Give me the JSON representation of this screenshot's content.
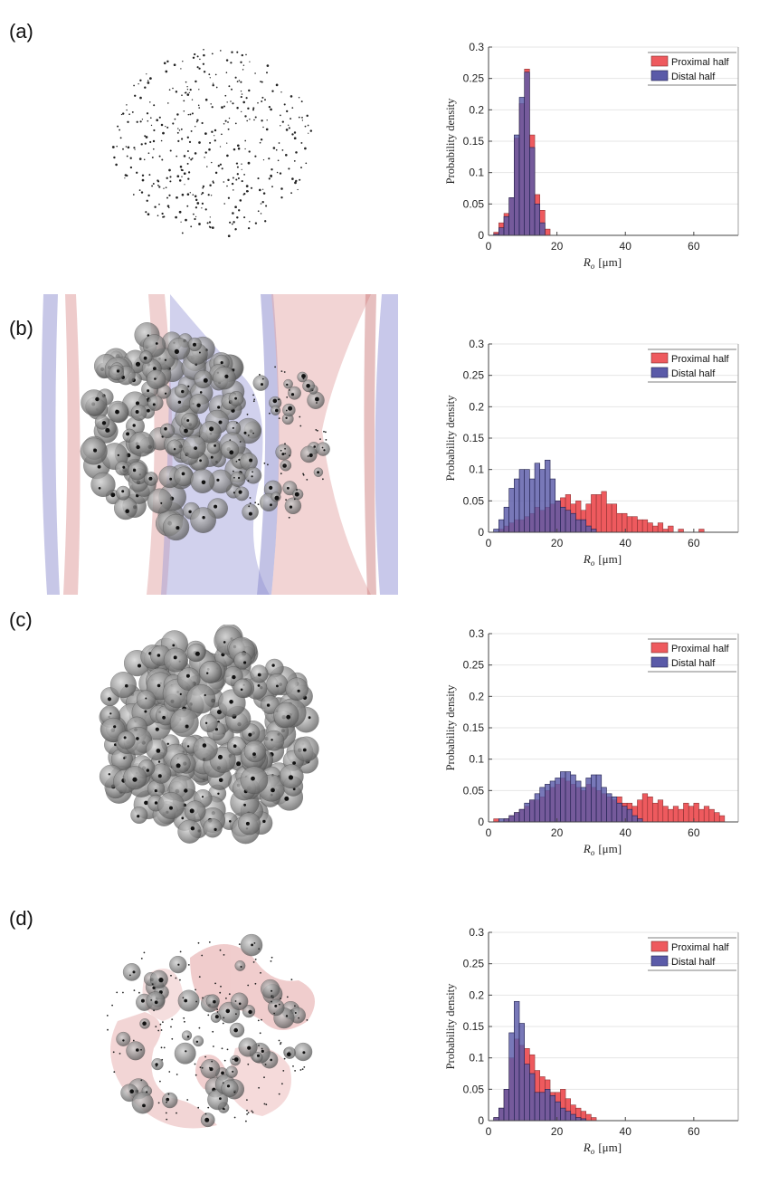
{
  "panels": [
    {
      "label": "(a)",
      "render": "sparse-points"
    },
    {
      "label": "(b)",
      "render": "clusters-with-vessels"
    },
    {
      "label": "(c)",
      "render": "dense-clusters"
    },
    {
      "label": "(d)",
      "render": "clusters-with-pink-surface"
    }
  ],
  "colors": {
    "proximal": "#ee5a5e",
    "distal": "#5a5aa8",
    "overlap": "#4a3d7a",
    "grid": "#e6e6e6",
    "axis": "#444444"
  },
  "chart_data": [
    {
      "type": "bar",
      "title": "",
      "xlabel_var": "R",
      "xlabel_sub": "o",
      "xlabel_unit": "[μm]",
      "ylabel": "Probability density",
      "xlim": [
        0,
        73
      ],
      "ylim": [
        0,
        0.3
      ],
      "xticks": [
        "0",
        "20",
        "40",
        "60"
      ],
      "yticks": [
        "0",
        "0.05",
        "0.1",
        "0.15",
        "0.2",
        "0.25",
        "0.3"
      ],
      "bin_width": 1.5,
      "legend": {
        "position": "top-right",
        "entries": [
          "Proximal half",
          "Distal half"
        ]
      },
      "series": [
        {
          "name": "Proximal half",
          "bin_starts": [
            1.5,
            3,
            4.5,
            6,
            7.5,
            9,
            10.5,
            12,
            13.5,
            15,
            16.5
          ],
          "values": [
            0.005,
            0.02,
            0.035,
            0.06,
            0.155,
            0.21,
            0.265,
            0.16,
            0.065,
            0.04,
            0.01
          ]
        },
        {
          "name": "Distal half",
          "bin_starts": [
            1.5,
            3,
            4.5,
            6,
            7.5,
            9,
            10.5,
            12,
            13.5,
            15
          ],
          "values": [
            0.002,
            0.012,
            0.03,
            0.06,
            0.16,
            0.22,
            0.26,
            0.14,
            0.05,
            0.02
          ]
        }
      ]
    },
    {
      "type": "bar",
      "title": "",
      "xlabel_var": "R",
      "xlabel_sub": "o",
      "xlabel_unit": "[μm]",
      "ylabel": "Probability density",
      "xlim": [
        0,
        73
      ],
      "ylim": [
        0,
        0.3
      ],
      "xticks": [
        "0",
        "20",
        "40",
        "60"
      ],
      "yticks": [
        "0",
        "0.05",
        "0.1",
        "0.15",
        "0.2",
        "0.25",
        "0.3"
      ],
      "bin_width": 1.5,
      "legend": {
        "position": "top-right",
        "entries": [
          "Proximal half",
          "Distal half"
        ]
      },
      "series": [
        {
          "name": "Proximal half",
          "bin_starts": [
            3,
            4.5,
            6,
            7.5,
            9,
            10.5,
            12,
            13.5,
            15,
            16.5,
            18,
            19.5,
            21,
            22.5,
            24,
            25.5,
            27,
            28.5,
            30,
            31.5,
            33,
            34.5,
            36,
            37.5,
            39,
            40.5,
            42,
            43.5,
            45,
            46.5,
            48,
            49.5,
            51,
            52.5,
            55.5,
            61.5
          ],
          "values": [
            0.005,
            0.01,
            0.015,
            0.02,
            0.02,
            0.025,
            0.03,
            0.04,
            0.035,
            0.04,
            0.045,
            0.05,
            0.055,
            0.06,
            0.045,
            0.05,
            0.035,
            0.045,
            0.06,
            0.06,
            0.065,
            0.045,
            0.045,
            0.03,
            0.03,
            0.025,
            0.025,
            0.02,
            0.02,
            0.015,
            0.01,
            0.015,
            0.005,
            0.01,
            0.005,
            0.005
          ]
        },
        {
          "name": "Distal half",
          "bin_starts": [
            1.5,
            3,
            4.5,
            6,
            7.5,
            9,
            10.5,
            12,
            13.5,
            15,
            16.5,
            18,
            19.5,
            21,
            22.5,
            24,
            25.5,
            27,
            28.5,
            30
          ],
          "values": [
            0.005,
            0.02,
            0.04,
            0.07,
            0.085,
            0.1,
            0.1,
            0.085,
            0.11,
            0.1,
            0.115,
            0.085,
            0.05,
            0.04,
            0.035,
            0.03,
            0.02,
            0.02,
            0.01,
            0.005
          ]
        }
      ]
    },
    {
      "type": "bar",
      "title": "",
      "xlabel_var": "R",
      "xlabel_sub": "o",
      "xlabel_unit": "[μm]",
      "ylabel": "Probability density",
      "xlim": [
        0,
        73
      ],
      "ylim": [
        0,
        0.3
      ],
      "xticks": [
        "0",
        "20",
        "40",
        "60"
      ],
      "yticks": [
        "0",
        "0.05",
        "0.1",
        "0.15",
        "0.2",
        "0.25",
        "0.3"
      ],
      "bin_width": 1.5,
      "legend": {
        "position": "top-right",
        "entries": [
          "Proximal half",
          "Distal half"
        ]
      },
      "series": [
        {
          "name": "Proximal half",
          "bin_starts": [
            1.5,
            4.5,
            6,
            7.5,
            9,
            10.5,
            12,
            13.5,
            15,
            16.5,
            18,
            19.5,
            21,
            22.5,
            24,
            25.5,
            27,
            28.5,
            30,
            31.5,
            33,
            34.5,
            36,
            37.5,
            39,
            40.5,
            42,
            43.5,
            45,
            46.5,
            48,
            49.5,
            51,
            52.5,
            54,
            55.5,
            57,
            58.5,
            60,
            61.5,
            63,
            64.5,
            66,
            67.5
          ],
          "values": [
            0.005,
            0.005,
            0.01,
            0.015,
            0.02,
            0.025,
            0.035,
            0.035,
            0.04,
            0.05,
            0.055,
            0.06,
            0.07,
            0.065,
            0.06,
            0.055,
            0.05,
            0.06,
            0.055,
            0.05,
            0.045,
            0.04,
            0.035,
            0.04,
            0.03,
            0.03,
            0.025,
            0.035,
            0.045,
            0.04,
            0.03,
            0.035,
            0.025,
            0.02,
            0.025,
            0.02,
            0.03,
            0.025,
            0.03,
            0.02,
            0.025,
            0.02,
            0.015,
            0.01
          ]
        },
        {
          "name": "Distal half",
          "bin_starts": [
            3,
            4.5,
            6,
            7.5,
            9,
            10.5,
            12,
            13.5,
            15,
            16.5,
            18,
            19.5,
            21,
            22.5,
            24,
            25.5,
            27,
            28.5,
            30,
            31.5,
            33,
            34.5,
            36,
            37.5,
            39,
            40.5,
            42,
            43.5
          ],
          "values": [
            0.005,
            0.005,
            0.01,
            0.015,
            0.02,
            0.03,
            0.035,
            0.045,
            0.055,
            0.06,
            0.065,
            0.07,
            0.08,
            0.08,
            0.075,
            0.065,
            0.055,
            0.07,
            0.075,
            0.075,
            0.055,
            0.045,
            0.04,
            0.03,
            0.025,
            0.02,
            0.01,
            0.005
          ]
        }
      ]
    },
    {
      "type": "bar",
      "title": "",
      "xlabel_var": "R",
      "xlabel_sub": "o",
      "xlabel_unit": "[μm]",
      "ylabel": "Probability density",
      "xlim": [
        0,
        73
      ],
      "ylim": [
        0,
        0.3
      ],
      "xticks": [
        "0",
        "20",
        "40",
        "60"
      ],
      "yticks": [
        "0",
        "0.05",
        "0.1",
        "0.15",
        "0.2",
        "0.25",
        "0.3"
      ],
      "bin_width": 1.5,
      "legend": {
        "position": "top-right",
        "entries": [
          "Proximal half",
          "Distal half"
        ]
      },
      "series": [
        {
          "name": "Proximal half",
          "bin_starts": [
            1.5,
            3,
            4.5,
            6,
            7.5,
            9,
            10.5,
            12,
            13.5,
            15,
            16.5,
            18,
            19.5,
            21,
            22.5,
            24,
            25.5,
            27,
            28.5,
            30
          ],
          "values": [
            0.005,
            0.02,
            0.05,
            0.1,
            0.13,
            0.12,
            0.115,
            0.105,
            0.08,
            0.07,
            0.065,
            0.045,
            0.045,
            0.05,
            0.035,
            0.025,
            0.02,
            0.015,
            0.01,
            0.005
          ]
        },
        {
          "name": "Distal half",
          "bin_starts": [
            1.5,
            3,
            4.5,
            6,
            7.5,
            9,
            10.5,
            12,
            13.5,
            15,
            16.5,
            18,
            19.5,
            21,
            22.5,
            24,
            25.5,
            27
          ],
          "values": [
            0.005,
            0.02,
            0.05,
            0.14,
            0.19,
            0.155,
            0.09,
            0.075,
            0.045,
            0.045,
            0.05,
            0.04,
            0.03,
            0.02,
            0.015,
            0.01,
            0.005,
            0.003
          ]
        }
      ]
    }
  ]
}
